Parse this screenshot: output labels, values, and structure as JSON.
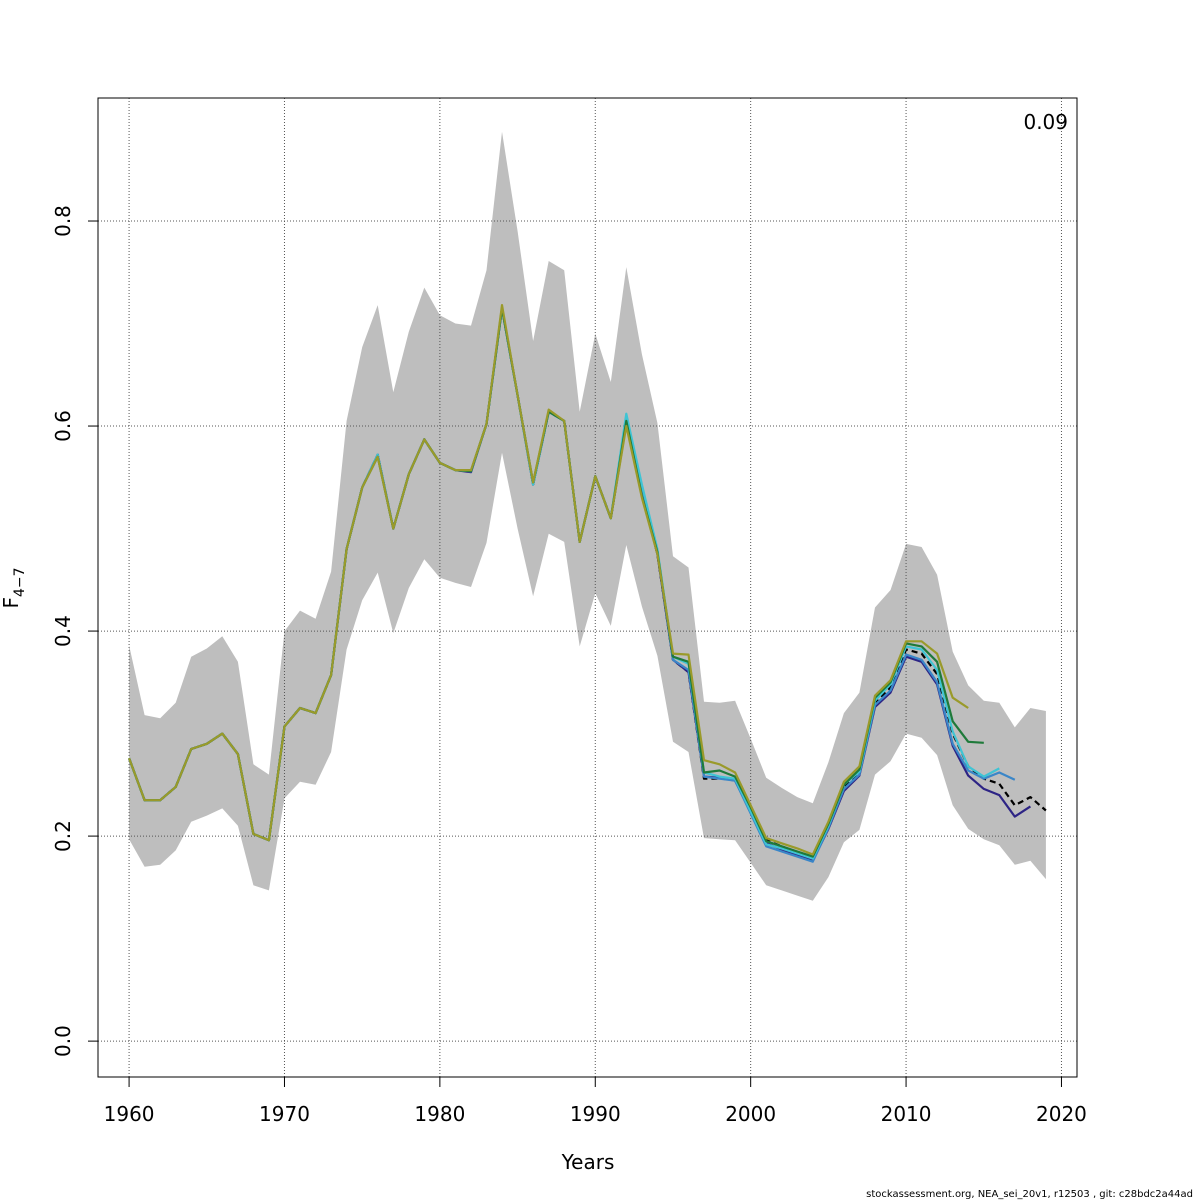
{
  "chart_data": {
    "type": "line",
    "xlabel": "Years",
    "ylabel_main": "F",
    "ylabel_sub": "4−7",
    "corner_value": "0.09",
    "footer": "stockassessment.org, NEA_sei_20v1, r12503 , git: c28bdc2a44ad",
    "xlim": [
      1958,
      2021
    ],
    "ylim": [
      -0.035,
      0.92
    ],
    "x_ticks": [
      1960,
      1970,
      1980,
      1990,
      2000,
      2010,
      2020
    ],
    "x_tick_labels": [
      "1960",
      "1970",
      "1980",
      "1990",
      "2000",
      "2010",
      "2020"
    ],
    "y_ticks": [
      0.0,
      0.2,
      0.4,
      0.6,
      0.8
    ],
    "y_tick_labels": [
      "0.0",
      "0.2",
      "0.4",
      "0.6",
      "0.8"
    ],
    "grid": true,
    "band": {
      "color": "#bebebe",
      "x": [
        1960,
        1961,
        1962,
        1963,
        1964,
        1965,
        1966,
        1967,
        1968,
        1969,
        1970,
        1971,
        1972,
        1973,
        1974,
        1975,
        1976,
        1977,
        1978,
        1979,
        1980,
        1981,
        1982,
        1983,
        1984,
        1985,
        1986,
        1987,
        1988,
        1989,
        1990,
        1991,
        1992,
        1993,
        1994,
        1995,
        1996,
        1997,
        1998,
        1999,
        2000,
        2001,
        2002,
        2003,
        2004,
        2005,
        2006,
        2007,
        2008,
        2009,
        2010,
        2011,
        2012,
        2013,
        2014,
        2015,
        2016,
        2017,
        2018,
        2019
      ],
      "upper": [
        0.386,
        0.318,
        0.315,
        0.33,
        0.375,
        0.383,
        0.395,
        0.37,
        0.27,
        0.26,
        0.4,
        0.42,
        0.412,
        0.458,
        0.605,
        0.677,
        0.718,
        0.633,
        0.692,
        0.735,
        0.708,
        0.7,
        0.698,
        0.752,
        0.887,
        0.79,
        0.683,
        0.761,
        0.752,
        0.614,
        0.69,
        0.643,
        0.755,
        0.67,
        0.603,
        0.473,
        0.462,
        0.331,
        0.33,
        0.332,
        0.295,
        0.257,
        0.247,
        0.238,
        0.232,
        0.272,
        0.32,
        0.34,
        0.423,
        0.44,
        0.485,
        0.482,
        0.455,
        0.38,
        0.347,
        0.332,
        0.33,
        0.306,
        0.325,
        0.322
      ],
      "lower": [
        0.197,
        0.17,
        0.172,
        0.186,
        0.214,
        0.22,
        0.227,
        0.21,
        0.152,
        0.147,
        0.237,
        0.253,
        0.25,
        0.282,
        0.382,
        0.43,
        0.457,
        0.398,
        0.442,
        0.47,
        0.452,
        0.447,
        0.443,
        0.486,
        0.574,
        0.5,
        0.434,
        0.495,
        0.487,
        0.385,
        0.437,
        0.405,
        0.484,
        0.424,
        0.376,
        0.292,
        0.282,
        0.198,
        0.197,
        0.196,
        0.174,
        0.152,
        0.147,
        0.142,
        0.137,
        0.16,
        0.194,
        0.206,
        0.26,
        0.273,
        0.3,
        0.296,
        0.279,
        0.23,
        0.207,
        0.197,
        0.191,
        0.172,
        0.176,
        0.158
      ]
    },
    "series": [
      {
        "color": "#000000",
        "dashed": true,
        "x": [
          1960,
          1961,
          1962,
          1963,
          1964,
          1965,
          1966,
          1967,
          1968,
          1969,
          1970,
          1971,
          1972,
          1973,
          1974,
          1975,
          1976,
          1977,
          1978,
          1979,
          1980,
          1981,
          1982,
          1983,
          1984,
          1985,
          1986,
          1987,
          1988,
          1989,
          1990,
          1991,
          1992,
          1993,
          1994,
          1995,
          1996,
          1997,
          1998,
          1999,
          2000,
          2001,
          2002,
          2003,
          2004,
          2005,
          2006,
          2007,
          2008,
          2009,
          2010,
          2011,
          2012,
          2013,
          2014,
          2015,
          2016,
          2017,
          2018,
          2019
        ],
        "values": [
          0.276,
          0.235,
          0.235,
          0.248,
          0.285,
          0.29,
          0.3,
          0.28,
          0.202,
          0.196,
          0.307,
          0.325,
          0.32,
          0.357,
          0.48,
          0.54,
          0.572,
          0.5,
          0.553,
          0.587,
          0.564,
          0.557,
          0.556,
          0.602,
          0.715,
          0.63,
          0.543,
          0.614,
          0.605,
          0.487,
          0.551,
          0.51,
          0.603,
          0.535,
          0.475,
          0.372,
          0.36,
          0.256,
          0.256,
          0.255,
          0.226,
          0.196,
          0.19,
          0.184,
          0.179,
          0.211,
          0.248,
          0.262,
          0.33,
          0.345,
          0.382,
          0.378,
          0.358,
          0.3,
          0.268,
          0.256,
          0.251,
          0.23,
          0.238,
          0.225
        ]
      },
      {
        "color": "#2d2485",
        "dashed": false,
        "x": [
          1960,
          1961,
          1962,
          1963,
          1964,
          1965,
          1966,
          1967,
          1968,
          1969,
          1970,
          1971,
          1972,
          1973,
          1974,
          1975,
          1976,
          1977,
          1978,
          1979,
          1980,
          1981,
          1982,
          1983,
          1984,
          1985,
          1986,
          1987,
          1988,
          1989,
          1990,
          1991,
          1992,
          1993,
          1994,
          1995,
          1996,
          1997,
          1998,
          1999,
          2000,
          2001,
          2002,
          2003,
          2004,
          2005,
          2006,
          2007,
          2008,
          2009,
          2010,
          2011,
          2012,
          2013,
          2014,
          2015,
          2016,
          2017,
          2018
        ],
        "values": [
          0.276,
          0.235,
          0.235,
          0.248,
          0.285,
          0.29,
          0.3,
          0.28,
          0.202,
          0.196,
          0.307,
          0.325,
          0.32,
          0.357,
          0.48,
          0.54,
          0.572,
          0.5,
          0.553,
          0.587,
          0.564,
          0.557,
          0.555,
          0.602,
          0.715,
          0.63,
          0.543,
          0.614,
          0.605,
          0.487,
          0.551,
          0.51,
          0.603,
          0.535,
          0.475,
          0.372,
          0.36,
          0.258,
          0.257,
          0.254,
          0.224,
          0.193,
          0.187,
          0.181,
          0.176,
          0.207,
          0.244,
          0.259,
          0.326,
          0.34,
          0.375,
          0.37,
          0.348,
          0.288,
          0.259,
          0.246,
          0.24,
          0.219,
          0.229
        ]
      },
      {
        "color": "#3a86c8",
        "dashed": false,
        "x": [
          1960,
          1961,
          1962,
          1963,
          1964,
          1965,
          1966,
          1967,
          1968,
          1969,
          1970,
          1971,
          1972,
          1973,
          1974,
          1975,
          1976,
          1977,
          1978,
          1979,
          1980,
          1981,
          1982,
          1983,
          1984,
          1985,
          1986,
          1987,
          1988,
          1989,
          1990,
          1991,
          1992,
          1993,
          1994,
          1995,
          1996,
          1997,
          1998,
          1999,
          2000,
          2001,
          2002,
          2003,
          2004,
          2005,
          2006,
          2007,
          2008,
          2009,
          2010,
          2011,
          2012,
          2013,
          2014,
          2015,
          2016,
          2017
        ],
        "values": [
          0.276,
          0.235,
          0.235,
          0.248,
          0.285,
          0.29,
          0.3,
          0.28,
          0.202,
          0.196,
          0.307,
          0.325,
          0.32,
          0.357,
          0.48,
          0.54,
          0.572,
          0.5,
          0.553,
          0.587,
          0.564,
          0.557,
          0.556,
          0.602,
          0.715,
          0.63,
          0.543,
          0.614,
          0.605,
          0.487,
          0.551,
          0.51,
          0.605,
          0.538,
          0.478,
          0.372,
          0.362,
          0.258,
          0.256,
          0.254,
          0.222,
          0.19,
          0.185,
          0.18,
          0.175,
          0.208,
          0.246,
          0.26,
          0.328,
          0.342,
          0.377,
          0.372,
          0.35,
          0.29,
          0.264,
          0.256,
          0.262,
          0.255
        ]
      },
      {
        "color": "#3fc4d4",
        "dashed": false,
        "x": [
          1960,
          1961,
          1962,
          1963,
          1964,
          1965,
          1966,
          1967,
          1968,
          1969,
          1970,
          1971,
          1972,
          1973,
          1974,
          1975,
          1976,
          1977,
          1978,
          1979,
          1980,
          1981,
          1982,
          1983,
          1984,
          1985,
          1986,
          1987,
          1988,
          1989,
          1990,
          1991,
          1992,
          1993,
          1994,
          1995,
          1996,
          1997,
          1998,
          1999,
          2000,
          2001,
          2002,
          2003,
          2004,
          2005,
          2006,
          2007,
          2008,
          2009,
          2010,
          2011,
          2012,
          2013,
          2014,
          2015,
          2016
        ],
        "values": [
          0.276,
          0.235,
          0.235,
          0.248,
          0.285,
          0.29,
          0.3,
          0.28,
          0.202,
          0.196,
          0.307,
          0.325,
          0.32,
          0.357,
          0.48,
          0.54,
          0.572,
          0.5,
          0.553,
          0.587,
          0.564,
          0.557,
          0.556,
          0.602,
          0.715,
          0.63,
          0.543,
          0.614,
          0.605,
          0.487,
          0.551,
          0.51,
          0.612,
          0.543,
          0.48,
          0.375,
          0.368,
          0.262,
          0.258,
          0.256,
          0.224,
          0.192,
          0.188,
          0.183,
          0.178,
          0.21,
          0.25,
          0.263,
          0.332,
          0.348,
          0.385,
          0.382,
          0.362,
          0.302,
          0.268,
          0.258,
          0.266
        ]
      },
      {
        "color": "#1f7a3a",
        "dashed": false,
        "x": [
          1960,
          1961,
          1962,
          1963,
          1964,
          1965,
          1966,
          1967,
          1968,
          1969,
          1970,
          1971,
          1972,
          1973,
          1974,
          1975,
          1976,
          1977,
          1978,
          1979,
          1980,
          1981,
          1982,
          1983,
          1984,
          1985,
          1986,
          1987,
          1988,
          1989,
          1990,
          1991,
          1992,
          1993,
          1994,
          1995,
          1996,
          1997,
          1998,
          1999,
          2000,
          2001,
          2002,
          2003,
          2004,
          2005,
          2006,
          2007,
          2008,
          2009,
          2010,
          2011,
          2012,
          2013,
          2014,
          2015
        ],
        "values": [
          0.276,
          0.235,
          0.235,
          0.248,
          0.285,
          0.29,
          0.3,
          0.28,
          0.202,
          0.196,
          0.307,
          0.325,
          0.32,
          0.357,
          0.48,
          0.54,
          0.57,
          0.5,
          0.553,
          0.587,
          0.564,
          0.557,
          0.556,
          0.602,
          0.715,
          0.63,
          0.545,
          0.614,
          0.605,
          0.487,
          0.551,
          0.51,
          0.605,
          0.532,
          0.477,
          0.375,
          0.37,
          0.262,
          0.264,
          0.258,
          0.228,
          0.195,
          0.19,
          0.185,
          0.18,
          0.212,
          0.25,
          0.265,
          0.335,
          0.35,
          0.388,
          0.385,
          0.37,
          0.312,
          0.292,
          0.291
        ]
      },
      {
        "color": "#9a9a2a",
        "dashed": false,
        "x": [
          1960,
          1961,
          1962,
          1963,
          1964,
          1965,
          1966,
          1967,
          1968,
          1969,
          1970,
          1971,
          1972,
          1973,
          1974,
          1975,
          1976,
          1977,
          1978,
          1979,
          1980,
          1981,
          1982,
          1983,
          1984,
          1985,
          1986,
          1987,
          1988,
          1989,
          1990,
          1991,
          1992,
          1993,
          1994,
          1995,
          1996,
          1997,
          1998,
          1999,
          2000,
          2001,
          2002,
          2003,
          2004,
          2005,
          2006,
          2007,
          2008,
          2009,
          2010,
          2011,
          2012,
          2013,
          2014
        ],
        "values": [
          0.276,
          0.235,
          0.235,
          0.248,
          0.285,
          0.29,
          0.3,
          0.28,
          0.202,
          0.196,
          0.307,
          0.325,
          0.32,
          0.357,
          0.48,
          0.54,
          0.57,
          0.5,
          0.553,
          0.587,
          0.564,
          0.557,
          0.557,
          0.602,
          0.718,
          0.63,
          0.545,
          0.616,
          0.605,
          0.487,
          0.551,
          0.51,
          0.6,
          0.53,
          0.475,
          0.378,
          0.377,
          0.274,
          0.27,
          0.262,
          0.23,
          0.198,
          0.193,
          0.188,
          0.182,
          0.214,
          0.253,
          0.268,
          0.337,
          0.352,
          0.39,
          0.39,
          0.378,
          0.335,
          0.325
        ]
      }
    ]
  }
}
